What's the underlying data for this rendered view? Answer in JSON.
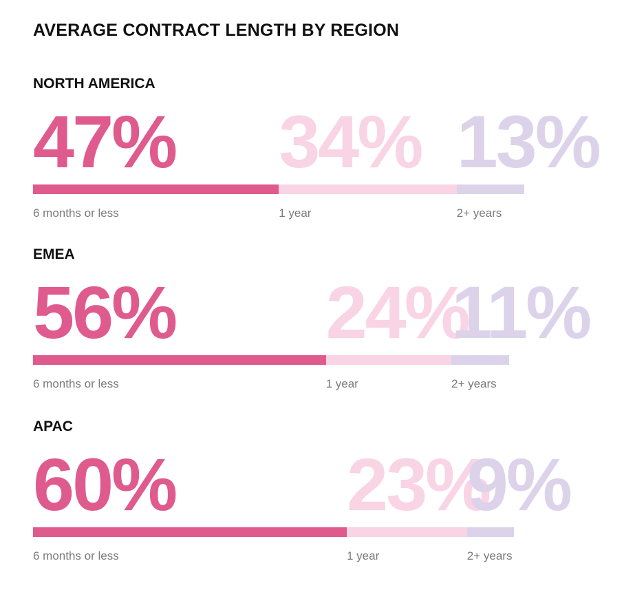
{
  "colors": {
    "short": "#df5b8e",
    "mid": "#f8d4e4",
    "long": "#dcd3ea",
    "label_dark": "#111111",
    "label_grey": "#7a7a7a"
  },
  "chart_data": {
    "type": "bar",
    "title": "AVERAGE CONTRACT LENGTH BY REGION",
    "categories": [
      "6 months or less",
      "1 year",
      "2+ years"
    ],
    "value_unit": "%",
    "regions": [
      {
        "name": "NORTH AMERICA",
        "values": [
          47,
          34,
          13
        ],
        "labels": [
          "47%",
          "34%",
          "13%"
        ]
      },
      {
        "name": "EMEA",
        "values": [
          56,
          24,
          11
        ],
        "labels": [
          "56%",
          "24%",
          "11%"
        ]
      },
      {
        "name": "APAC",
        "values": [
          60,
          23,
          9
        ],
        "labels": [
          "60%",
          "23%",
          "9%"
        ]
      }
    ]
  }
}
